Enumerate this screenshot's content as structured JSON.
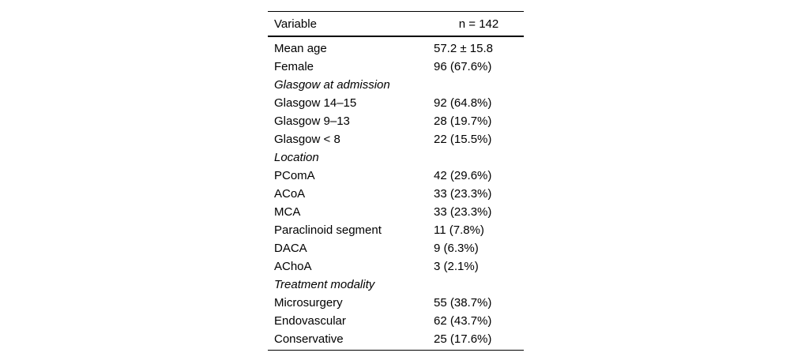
{
  "table": {
    "header": {
      "variable": "Variable",
      "n": "n = 142"
    },
    "rows": [
      {
        "label": "Mean age",
        "value": "57.2 ± 15.8",
        "italic": false
      },
      {
        "label": "Female",
        "value": "96 (67.6%)",
        "italic": false
      },
      {
        "label": "Glasgow at admission",
        "value": "",
        "italic": true
      },
      {
        "label": "Glasgow 14–15",
        "value": "92 (64.8%)",
        "italic": false
      },
      {
        "label": "Glasgow 9–13",
        "value": "28 (19.7%)",
        "italic": false
      },
      {
        "label": "Glasgow < 8",
        "value": "22 (15.5%)",
        "italic": false
      },
      {
        "label": "Location",
        "value": "",
        "italic": true
      },
      {
        "label": "PComA",
        "value": "42 (29.6%)",
        "italic": false
      },
      {
        "label": "ACoA",
        "value": "33 (23.3%)",
        "italic": false
      },
      {
        "label": "MCA",
        "value": "33 (23.3%)",
        "italic": false
      },
      {
        "label": "Paraclinoid segment",
        "value": "11 (7.8%)",
        "italic": false
      },
      {
        "label": "DACA",
        "value": "9 (6.3%)",
        "italic": false
      },
      {
        "label": "AChoA",
        "value": "3 (2.1%)",
        "italic": false
      },
      {
        "label": "Treatment modality",
        "value": "",
        "italic": true
      },
      {
        "label": "Microsurgery",
        "value": "55 (38.7%)",
        "italic": false
      },
      {
        "label": "Endovascular",
        "value": "62 (43.7%)",
        "italic": false
      },
      {
        "label": "Conservative",
        "value": "25 (17.6%)",
        "italic": false
      }
    ],
    "colors": {
      "text": "#000000",
      "background": "#ffffff",
      "rule": "#000000"
    }
  }
}
